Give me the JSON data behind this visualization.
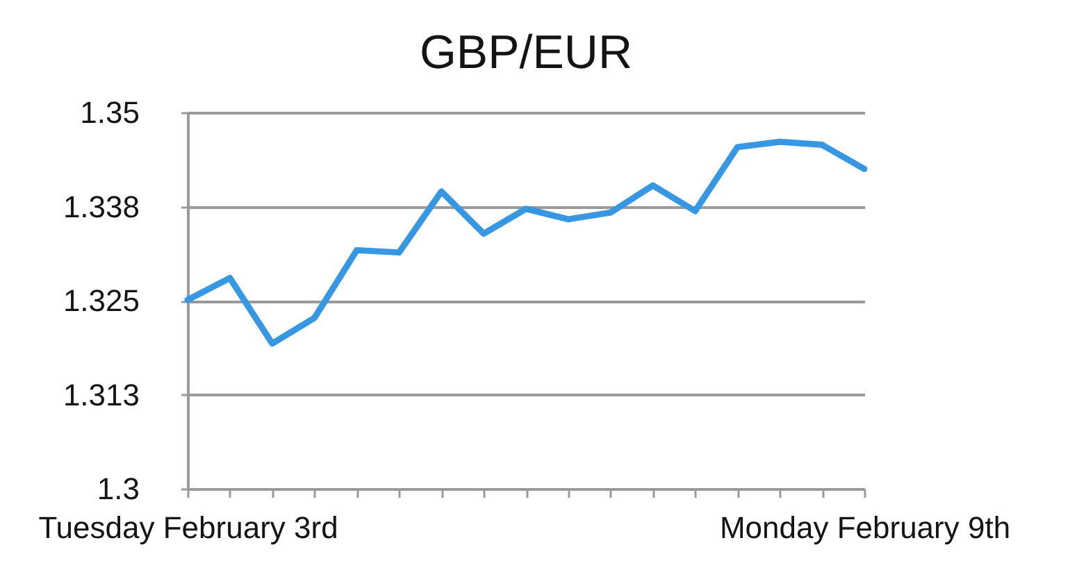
{
  "chart_data": {
    "type": "line",
    "title": "GBP/EUR",
    "categories": [
      "Tuesday February 3rd",
      null,
      null,
      null,
      null,
      null,
      null,
      null,
      null,
      null,
      null,
      null,
      null,
      null,
      null,
      null,
      "Monday February 9th"
    ],
    "series": [
      {
        "color": "#3797e3",
        "values": [
          1.3251,
          1.328,
          1.3193,
          1.3227,
          1.3317,
          1.3314,
          1.3395,
          1.3339,
          1.3372,
          1.3358,
          1.3367,
          1.3403,
          1.3369,
          1.3454,
          1.3461,
          1.3457,
          1.3425
        ]
      }
    ],
    "ylim": [
      1.3,
      1.35
    ],
    "yticks": [
      1.3,
      {
        "value": 1.3125,
        "label": "1.313"
      },
      1.325,
      {
        "value": 1.3375,
        "label": "1.338"
      },
      1.35
    ],
    "grid": "y",
    "line_style": "solid"
  }
}
